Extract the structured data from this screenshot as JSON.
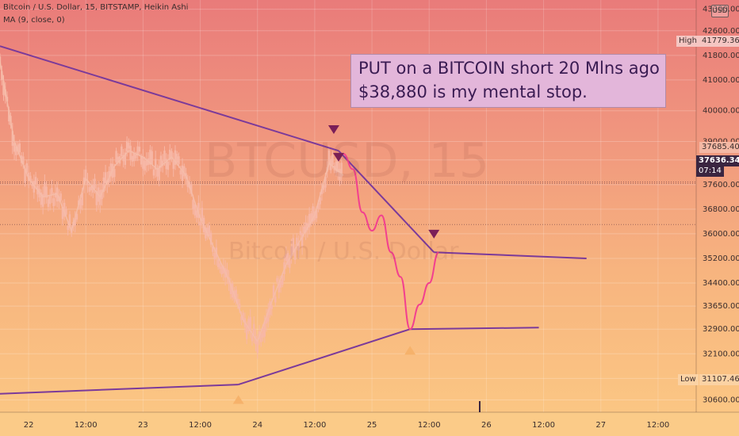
{
  "header": {
    "symbol_line": "Bitcoin / U.S. Dollar, 15, BITSTAMP, Heikin Ashi",
    "indicator_line": "MA (9, close, 0)",
    "currency_button": "USD"
  },
  "watermark": {
    "symbol": "BTCUSD, 15",
    "description": "Bitcoin / U.S. Dollar"
  },
  "annotation": {
    "line1": "PUT on a BITCOIN short 20 Mlns ago",
    "line2": "$38,880 is my mental stop."
  },
  "price_labels": {
    "high_label": "High",
    "high_value": "41779.36",
    "low_label": "Low",
    "low_value": "31107.46",
    "mark_value": "37685.40",
    "current_value": "37636.34",
    "countdown": "07:14"
  },
  "colors": {
    "trendline": "#7b3a9a",
    "projection": "#f2408f",
    "candle": "#f7b7a6",
    "down_marker": "#7a1e58",
    "up_marker": "#f6b26b",
    "current_tag": "#3a2540"
  },
  "chart_data": {
    "type": "line",
    "title": "Bitcoin / U.S. Dollar, 15, BITSTAMP, Heikin Ashi",
    "x_ticks": [
      "22",
      "12:00",
      "23",
      "12:00",
      "24",
      "12:00",
      "25",
      "12:00",
      "26",
      "12:00",
      "27",
      "12:00"
    ],
    "y_ticks": [
      30600,
      31300,
      32100,
      32900,
      33650,
      34400,
      35200,
      36000,
      36800,
      37600,
      38400,
      39000,
      40000,
      41000,
      41800,
      42600,
      43300
    ],
    "y_tick_labels": [
      "30600.00",
      "31300.00",
      "32100.00",
      "32900.00",
      "33650.00",
      "34400.00",
      "35200.00",
      "36000.00",
      "36800.00",
      "37600.00",
      "38400.00",
      "39000.00",
      "40000.00",
      "41000.00",
      "41800.00",
      "42600.00",
      "43300.00"
    ],
    "ylim": [
      30200,
      43600
    ],
    "series": [
      {
        "price_path": [
          [
            "2021-01-21 18:00",
            41600
          ],
          [
            "2021-01-21 21:00",
            39000
          ],
          [
            "2021-01-22 00:00",
            37800
          ],
          [
            "2021-01-22 03:00",
            37200
          ],
          [
            "2021-01-22 06:00",
            37300
          ],
          [
            "2021-01-22 09:00",
            36100
          ],
          [
            "2021-01-22 12:00",
            37800
          ],
          [
            "2021-01-22 15:00",
            37200
          ],
          [
            "2021-01-22 18:00",
            38200
          ],
          [
            "2021-01-22 21:00",
            38700
          ],
          [
            "2021-01-23 00:00",
            38500
          ],
          [
            "2021-01-23 03:00",
            38100
          ],
          [
            "2021-01-23 06:00",
            38500
          ],
          [
            "2021-01-23 09:00",
            37900
          ],
          [
            "2021-01-23 12:00",
            36500
          ],
          [
            "2021-01-23 15:00",
            35500
          ],
          [
            "2021-01-23 18:00",
            34500
          ],
          [
            "2021-01-23 21:00",
            33200
          ],
          [
            "2021-01-24 00:00",
            32500
          ],
          [
            "2021-01-24 03:00",
            33800
          ],
          [
            "2021-01-24 06:00",
            35000
          ],
          [
            "2021-01-24 09:00",
            35800
          ],
          [
            "2021-01-24 12:00",
            36600
          ],
          [
            "2021-01-24 15:00",
            38300
          ],
          [
            "2021-01-24 18:00",
            37900
          ]
        ]
      },
      {
        "projection": [
          [
            "2021-01-24 18:00",
            38600
          ],
          [
            "2021-01-24 20:00",
            38100
          ],
          [
            "2021-01-24 22:00",
            36700
          ],
          [
            "2021-01-25 00:00",
            36100
          ],
          [
            "2021-01-25 02:00",
            36600
          ],
          [
            "2021-01-25 04:00",
            35400
          ],
          [
            "2021-01-25 06:00",
            34600
          ],
          [
            "2021-01-25 08:00",
            32900
          ],
          [
            "2021-01-25 10:00",
            33700
          ],
          [
            "2021-01-25 12:00",
            34400
          ],
          [
            "2021-01-25 14:00",
            35400
          ]
        ]
      }
    ],
    "trendlines": [
      {
        "from": [
          "2021-01-21 18:00",
          42100
        ],
        "to": [
          "2021-01-24 17:00",
          38700
        ]
      },
      {
        "from": [
          "2021-01-24 17:00",
          38700
        ],
        "to": [
          "2021-01-25 13:00",
          35400
        ]
      },
      {
        "from": [
          "2021-01-25 13:00",
          35400
        ],
        "to": [
          "2021-01-26 21:00",
          35200
        ]
      },
      {
        "from": [
          "2021-01-21 18:00",
          30800
        ],
        "to": [
          "2021-01-23 20:00",
          31100
        ]
      },
      {
        "from": [
          "2021-01-23 20:00",
          31100
        ],
        "to": [
          "2021-01-25 08:00",
          32900
        ]
      },
      {
        "from": [
          "2021-01-25 08:00",
          32900
        ],
        "to": [
          "2021-01-26 11:00",
          32950
        ]
      }
    ],
    "markers": [
      {
        "type": "down",
        "x": "2021-01-24 16:00",
        "y": 39400
      },
      {
        "type": "down",
        "x": "2021-01-24 17:00",
        "y": 38500
      },
      {
        "type": "down",
        "x": "2021-01-25 13:00",
        "y": 36000
      },
      {
        "type": "up",
        "x": "2021-01-23 20:00",
        "y": 30600
      },
      {
        "type": "up",
        "x": "2021-01-25 08:00",
        "y": 32200
      }
    ]
  }
}
